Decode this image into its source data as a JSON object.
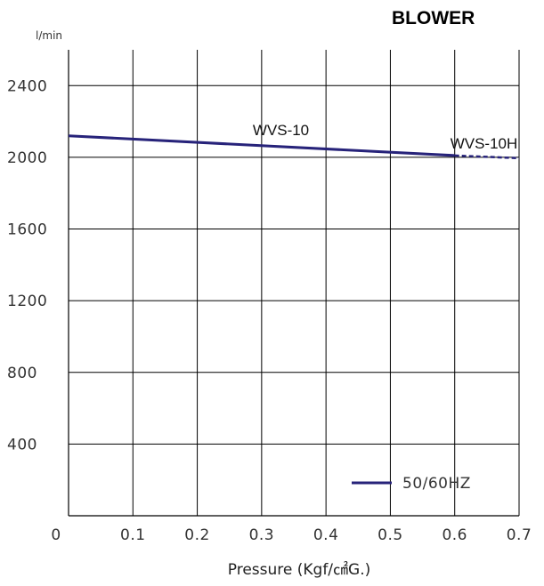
{
  "chart_data": {
    "type": "line",
    "title": "BLOWER",
    "xlabel": "Pressure (Kgf/㎠G.)",
    "ylabel": "l/min",
    "xlim": [
      0,
      0.7
    ],
    "ylim": [
      0,
      2600
    ],
    "x_ticks": [
      "0",
      "0.1",
      "0.2",
      "0.3",
      "0.4",
      "0.5",
      "0.6",
      "0.7"
    ],
    "y_ticks": [
      "400",
      "800",
      "1200",
      "1600",
      "2000",
      "2400"
    ],
    "grid": true,
    "color": "#27237a",
    "series": [
      {
        "name": "50/60HZ",
        "segments": [
          {
            "label": "WVS-10",
            "style": "solid",
            "points": [
              [
                0,
                2120
              ],
              [
                0.6,
                2010
              ]
            ]
          },
          {
            "label": "WVS-10H",
            "style": "dashed",
            "points": [
              [
                0.6,
                2010
              ],
              [
                0.7,
                1995
              ]
            ]
          }
        ]
      }
    ],
    "legend": {
      "placement": "bottom-right",
      "label": "50/60HZ"
    }
  }
}
